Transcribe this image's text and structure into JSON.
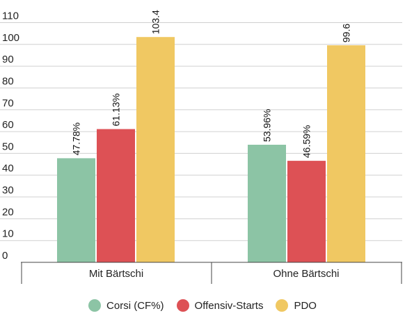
{
  "chart_data": {
    "type": "bar",
    "categories": [
      "Mit Bärtschi",
      "Ohne Bärtschi"
    ],
    "series": [
      {
        "name": "Corsi (CF%)",
        "values": [
          47.78,
          53.96
        ],
        "labels": [
          "47.78%",
          "53.96%"
        ],
        "color": "#8cc4a5"
      },
      {
        "name": "Offensiv-Starts",
        "values": [
          61.13,
          46.59
        ],
        "labels": [
          "61.13%",
          "46.59%"
        ],
        "color": "#dd5155"
      },
      {
        "name": "PDO",
        "values": [
          103.4,
          99.6
        ],
        "labels": [
          "103.4",
          "99.6"
        ],
        "color": "#f0c862"
      }
    ],
    "ylim": [
      0,
      113
    ],
    "yticks": [
      "0",
      "10",
      "20",
      "30",
      "40",
      "50",
      "60",
      "70",
      "80",
      "90",
      "100",
      "110"
    ],
    "grid": true,
    "legend_position": "bottom"
  }
}
